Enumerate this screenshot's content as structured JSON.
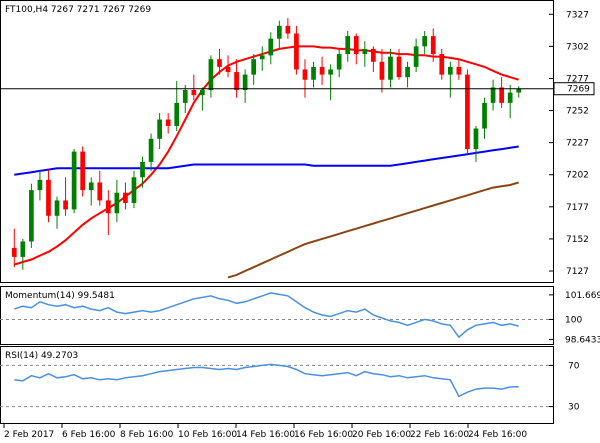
{
  "header": {
    "title": "FT100,H4",
    "ohlc": "7267 7271 7267 7269"
  },
  "chart_data": [
    {
      "type": "candlestick",
      "title": "FT100,H4  7267 7271 7267 7269",
      "y_ticks": [
        7327,
        7302,
        7277,
        7252,
        7227,
        7202,
        7177,
        7152,
        7127
      ],
      "ylim": [
        7120,
        7335
      ],
      "current_price": 7269,
      "x_tick_labels": [
        "2 Feb 2017",
        "6 Feb 16:00",
        "8 Feb 16:00",
        "10 Feb 16:00",
        "14 Feb 16:00",
        "16 Feb 16:00",
        "20 Feb 16:00",
        "22 Feb 16:00",
        "24 Feb 16:00"
      ],
      "colors": {
        "up": "#008000",
        "down": "#ff0000",
        "price_line": "#000000",
        "sma20": "#ff0000",
        "sma100": "#0000ff",
        "sma200": "#8b4513"
      },
      "candles": [
        {
          "o": 7145,
          "h": 7160,
          "l": 7130,
          "c": 7138
        },
        {
          "o": 7138,
          "h": 7152,
          "l": 7128,
          "c": 7150
        },
        {
          "o": 7150,
          "h": 7195,
          "l": 7145,
          "c": 7190
        },
        {
          "o": 7190,
          "h": 7205,
          "l": 7182,
          "c": 7198
        },
        {
          "o": 7198,
          "h": 7206,
          "l": 7165,
          "c": 7170
        },
        {
          "o": 7170,
          "h": 7185,
          "l": 7160,
          "c": 7182
        },
        {
          "o": 7182,
          "h": 7200,
          "l": 7170,
          "c": 7175
        },
        {
          "o": 7175,
          "h": 7222,
          "l": 7172,
          "c": 7220
        },
        {
          "o": 7220,
          "h": 7224,
          "l": 7185,
          "c": 7190
        },
        {
          "o": 7190,
          "h": 7200,
          "l": 7178,
          "c": 7196
        },
        {
          "o": 7196,
          "h": 7205,
          "l": 7178,
          "c": 7182
        },
        {
          "o": 7182,
          "h": 7190,
          "l": 7155,
          "c": 7172
        },
        {
          "o": 7172,
          "h": 7198,
          "l": 7165,
          "c": 7188
        },
        {
          "o": 7188,
          "h": 7196,
          "l": 7175,
          "c": 7180
        },
        {
          "o": 7180,
          "h": 7205,
          "l": 7176,
          "c": 7200
        },
        {
          "o": 7200,
          "h": 7216,
          "l": 7192,
          "c": 7212
        },
        {
          "o": 7212,
          "h": 7234,
          "l": 7205,
          "c": 7230
        },
        {
          "o": 7230,
          "h": 7250,
          "l": 7222,
          "c": 7245
        },
        {
          "o": 7245,
          "h": 7250,
          "l": 7234,
          "c": 7240
        },
        {
          "o": 7240,
          "h": 7275,
          "l": 7236,
          "c": 7258
        },
        {
          "o": 7258,
          "h": 7272,
          "l": 7250,
          "c": 7268
        },
        {
          "o": 7268,
          "h": 7280,
          "l": 7260,
          "c": 7264
        },
        {
          "o": 7264,
          "h": 7270,
          "l": 7252,
          "c": 7268
        },
        {
          "o": 7268,
          "h": 7295,
          "l": 7262,
          "c": 7292
        },
        {
          "o": 7292,
          "h": 7300,
          "l": 7280,
          "c": 7286
        },
        {
          "o": 7286,
          "h": 7295,
          "l": 7278,
          "c": 7282
        },
        {
          "o": 7282,
          "h": 7292,
          "l": 7262,
          "c": 7268
        },
        {
          "o": 7268,
          "h": 7284,
          "l": 7258,
          "c": 7280
        },
        {
          "o": 7280,
          "h": 7296,
          "l": 7272,
          "c": 7292
        },
        {
          "o": 7292,
          "h": 7302,
          "l": 7283,
          "c": 7295
        },
        {
          "o": 7295,
          "h": 7313,
          "l": 7288,
          "c": 7308
        },
        {
          "o": 7308,
          "h": 7322,
          "l": 7300,
          "c": 7318
        },
        {
          "o": 7318,
          "h": 7324,
          "l": 7308,
          "c": 7312
        },
        {
          "o": 7312,
          "h": 7318,
          "l": 7280,
          "c": 7284
        },
        {
          "o": 7284,
          "h": 7292,
          "l": 7262,
          "c": 7276
        },
        {
          "o": 7276,
          "h": 7290,
          "l": 7270,
          "c": 7286
        },
        {
          "o": 7286,
          "h": 7294,
          "l": 7272,
          "c": 7280
        },
        {
          "o": 7280,
          "h": 7288,
          "l": 7260,
          "c": 7284
        },
        {
          "o": 7284,
          "h": 7300,
          "l": 7278,
          "c": 7296
        },
        {
          "o": 7296,
          "h": 7314,
          "l": 7290,
          "c": 7310
        },
        {
          "o": 7310,
          "h": 7312,
          "l": 7288,
          "c": 7296
        },
        {
          "o": 7296,
          "h": 7306,
          "l": 7286,
          "c": 7300
        },
        {
          "o": 7300,
          "h": 7302,
          "l": 7282,
          "c": 7290
        },
        {
          "o": 7290,
          "h": 7300,
          "l": 7266,
          "c": 7276
        },
        {
          "o": 7276,
          "h": 7300,
          "l": 7270,
          "c": 7294
        },
        {
          "o": 7294,
          "h": 7300,
          "l": 7276,
          "c": 7278
        },
        {
          "o": 7278,
          "h": 7290,
          "l": 7270,
          "c": 7286
        },
        {
          "o": 7286,
          "h": 7308,
          "l": 7282,
          "c": 7302
        },
        {
          "o": 7302,
          "h": 7314,
          "l": 7296,
          "c": 7310
        },
        {
          "o": 7310,
          "h": 7316,
          "l": 7290,
          "c": 7296
        },
        {
          "o": 7296,
          "h": 7300,
          "l": 7276,
          "c": 7280
        },
        {
          "o": 7280,
          "h": 7290,
          "l": 7262,
          "c": 7286
        },
        {
          "o": 7286,
          "h": 7292,
          "l": 7276,
          "c": 7280
        },
        {
          "o": 7280,
          "h": 7284,
          "l": 7218,
          "c": 7222
        },
        {
          "o": 7222,
          "h": 7240,
          "l": 7212,
          "c": 7238
        },
        {
          "o": 7238,
          "h": 7262,
          "l": 7230,
          "c": 7258
        },
        {
          "o": 7258,
          "h": 7276,
          "l": 7252,
          "c": 7270
        },
        {
          "o": 7270,
          "h": 7278,
          "l": 7254,
          "c": 7258
        },
        {
          "o": 7258,
          "h": 7272,
          "l": 7246,
          "c": 7266
        },
        {
          "o": 7266,
          "h": 7271,
          "l": 7262,
          "c": 7269
        }
      ],
      "moving_averages": [
        {
          "period": 20,
          "values": [
            7132,
            7134,
            7136,
            7139,
            7142,
            7146,
            7151,
            7157,
            7163,
            7168,
            7172,
            7176,
            7180,
            7185,
            7190,
            7195,
            7202,
            7210,
            7220,
            7232,
            7245,
            7258,
            7268,
            7276,
            7282,
            7287,
            7290,
            7292,
            7294,
            7296,
            7298,
            7300,
            7301,
            7302,
            7302,
            7302,
            7301,
            7301,
            7300,
            7300,
            7299,
            7299,
            7298,
            7297,
            7297,
            7296,
            7296,
            7295,
            7295,
            7294,
            7294,
            7293,
            7292,
            7290,
            7288,
            7286,
            7283,
            7280,
            7278,
            7276
          ]
        },
        {
          "period": 100,
          "values": [
            7202,
            7203,
            7204,
            7205,
            7206,
            7207,
            7207,
            7207,
            7207,
            7207,
            7207,
            7207,
            7207,
            7207,
            7207,
            7207,
            7207,
            7207,
            7207,
            7208,
            7209,
            7210,
            7210,
            7210,
            7210,
            7210,
            7210,
            7210,
            7210,
            7210,
            7210,
            7210,
            7210,
            7210,
            7210,
            7209,
            7209,
            7209,
            7209,
            7209,
            7209,
            7209,
            7209,
            7209,
            7209,
            7210,
            7211,
            7212,
            7213,
            7214,
            7215,
            7216,
            7217,
            7218,
            7219,
            7220,
            7221,
            7222,
            7223,
            7224
          ]
        },
        {
          "period": 200,
          "values": [
            null,
            null,
            null,
            null,
            null,
            null,
            null,
            null,
            null,
            null,
            null,
            null,
            null,
            null,
            null,
            null,
            null,
            null,
            null,
            null,
            null,
            null,
            null,
            null,
            null,
            7122,
            7124,
            7127,
            7130,
            7133,
            7136,
            7139,
            7142,
            7145,
            7148,
            7150,
            7152,
            7154,
            7156,
            7158,
            7160,
            7162,
            7164,
            7166,
            7168,
            7170,
            7172,
            7174,
            7176,
            7178,
            7180,
            7182,
            7184,
            7186,
            7188,
            7190,
            7192,
            7193,
            7194,
            7196
          ]
        }
      ]
    },
    {
      "type": "line",
      "title": "Momentum(14) 99.5481",
      "y_ticks": [
        101.6696,
        100,
        98.6433
      ],
      "ylim": [
        98.4,
        102.0
      ],
      "level_line": 100,
      "series": [
        {
          "name": "Momentum(14)",
          "color": "#4a90e2",
          "values": [
            100.7,
            100.9,
            100.8,
            101.2,
            101.0,
            100.9,
            101.0,
            100.8,
            100.9,
            100.7,
            100.6,
            100.8,
            100.5,
            100.4,
            100.5,
            100.6,
            100.5,
            100.6,
            100.8,
            101.0,
            101.2,
            101.4,
            101.5,
            101.6,
            101.4,
            101.3,
            101.1,
            101.2,
            101.4,
            101.6,
            101.8,
            101.7,
            101.6,
            101.2,
            100.8,
            100.5,
            100.3,
            100.2,
            100.4,
            100.6,
            100.5,
            100.7,
            100.3,
            100.1,
            99.9,
            99.8,
            99.6,
            99.8,
            100.0,
            99.9,
            99.7,
            99.6,
            98.8,
            99.3,
            99.6,
            99.7,
            99.8,
            99.6,
            99.7,
            99.55
          ]
        }
      ]
    },
    {
      "type": "line",
      "title": "RSI(14) 49.2703",
      "y_ticks": [
        70,
        30
      ],
      "ylim": [
        15,
        85
      ],
      "level_lines": [
        70,
        30
      ],
      "series": [
        {
          "name": "RSI(14)",
          "color": "#4a90e2",
          "values": [
            56,
            55,
            60,
            58,
            62,
            58,
            59,
            61,
            57,
            58,
            56,
            57,
            56,
            58,
            59,
            60,
            62,
            64,
            65,
            66,
            67,
            68,
            68,
            67,
            66,
            67,
            66,
            68,
            69,
            70,
            71,
            70,
            69,
            66,
            62,
            61,
            60,
            61,
            62,
            63,
            60,
            64,
            62,
            61,
            59,
            60,
            58,
            59,
            60,
            58,
            57,
            56,
            40,
            44,
            47,
            48,
            48,
            47,
            49,
            49.27
          ]
        }
      ]
    }
  ]
}
